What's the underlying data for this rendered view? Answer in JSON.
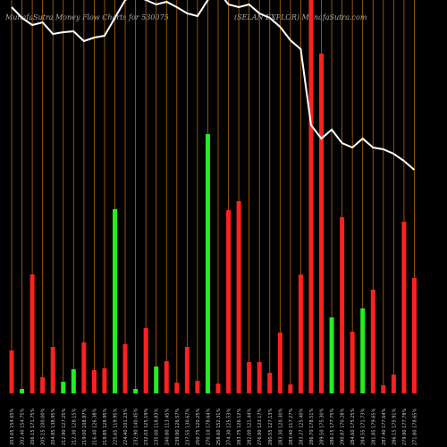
{
  "chart_data": {
    "type": "bar",
    "title": "MunafaSutra  Money Flow  Charts for 530075",
    "subtitle": "(SELAN  EXPLOR) MunafaSutra.com",
    "categories": [
      "203.65 154.65%",
      "202.40 154.75%",
      "206.15 171.75%",
      "205.15 100.00%",
      "204.85 138.95%",
      "212.90 127.25%",
      "212.30 128.15%",
      "219.00 108.97%",
      "216.40 126.38%",
      "219.85 128.95%",
      "225.65 119.95%",
      "224.40 101.23%",
      "232.90 140.45%",
      "232.03 125.19%",
      "235.00 118.83%",
      "240.80 113.45%",
      "239.90 126.57%",
      "237.55 130.67%",
      "250.75 120.25%",
      "270.10 178.64%",
      "258.60 152.31%",
      "274.30 125.53%",
      "283.75 126.12%",
      "282.00 121.44%",
      "276.90 123.17%",
      "280.55 127.13%",
      "283.30 120.30%",
      "283.40 117.27%",
      "283.27 125.40%",
      "286.70 178.51%",
      "289.50 175.30%",
      "286.15 177.75%",
      "290.87 170.28%",
      "284.60 175.25%",
      "284.55 171.73%",
      "281.85 179.65%",
      "287.40 177.64%",
      "286.15 175.91%",
      "279.90 177.78%",
      "271.80 178.65%"
    ],
    "values": [
      48,
      5,
      133,
      18,
      52,
      13,
      27,
      57,
      26,
      28,
      206,
      55,
      5,
      73,
      30,
      36,
      12,
      52,
      14,
      290,
      11,
      205,
      215,
      35,
      35,
      23,
      68,
      10,
      133,
      440,
      380,
      85,
      197,
      69,
      95,
      116,
      9,
      21,
      192,
      129
    ],
    "bar_colors": [
      "#ff2020",
      "#22ee22",
      "#ff2020",
      "#ff2020",
      "#ff2020",
      "#22ee22",
      "#22ee22",
      "#ff2020",
      "#ff2020",
      "#ff2020",
      "#22ee22",
      "#ff2020",
      "#22ee22",
      "#ff2020",
      "#22ee22",
      "#ff2020",
      "#ff2020",
      "#ff2020",
      "#ff2020",
      "#22ee22",
      "#ff2020",
      "#ff2020",
      "#ff2020",
      "#ff2020",
      "#ff2020",
      "#ff2020",
      "#ff2020",
      "#ff2020",
      "#ff2020",
      "#ff2020",
      "#ff2020",
      "#22ee22",
      "#ff2020",
      "#ff2020",
      "#22ee22",
      "#ff2020",
      "#ff2020",
      "#ff2020",
      "#ff2020",
      "#ff2020"
    ],
    "line": {
      "color": "#ffffff",
      "values": [
        432,
        420,
        412,
        415,
        402,
        404,
        405,
        394,
        398,
        400,
        420,
        440,
        445,
        440,
        435,
        438,
        432,
        425,
        422,
        440,
        450,
        435,
        432,
        435,
        425,
        420,
        410,
        395,
        385,
        300,
        285,
        295,
        280,
        275,
        285,
        275,
        273,
        268,
        260,
        250
      ]
    },
    "ylim": [
      0,
      440
    ],
    "grid_color": "#b8660b"
  }
}
